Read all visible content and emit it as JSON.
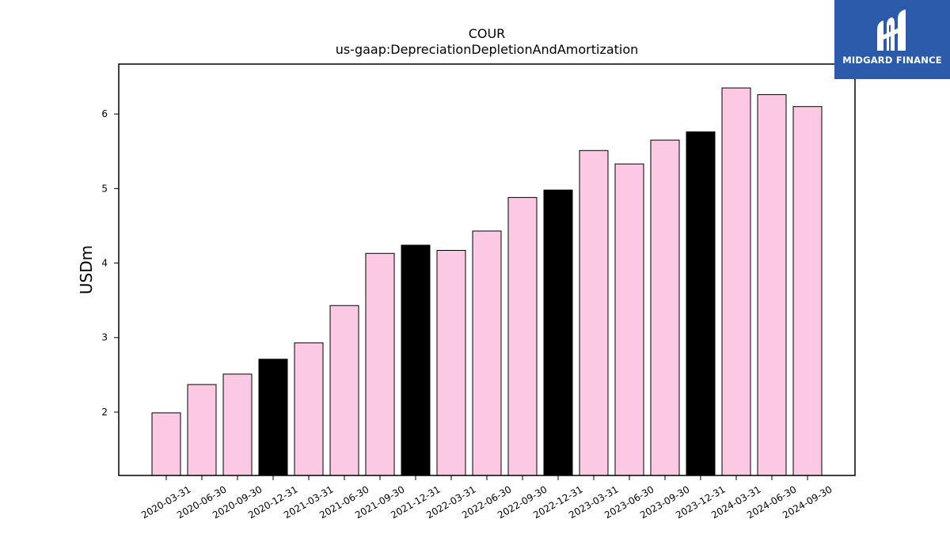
{
  "chart_data": {
    "type": "bar",
    "title": "COUR",
    "subtitle": "us-gaap:DepreciationDepletionAndAmortization",
    "ylabel": "USDm",
    "xlabel": "",
    "ylim": [
      1.15,
      6.67
    ],
    "yticks": [
      2,
      3,
      4,
      5,
      6
    ],
    "grid": false,
    "colors": {
      "default": "#fcc9e4",
      "highlight": "#000000",
      "edge": "#000000"
    },
    "categories": [
      "2020-03-31",
      "2020-06-30",
      "2020-09-30",
      "2020-12-31",
      "2021-03-31",
      "2021-06-30",
      "2021-09-30",
      "2021-12-31",
      "2022-03-31",
      "2022-06-30",
      "2022-09-30",
      "2022-12-31",
      "2023-03-31",
      "2023-06-30",
      "2023-09-30",
      "2023-12-31",
      "2024-03-31",
      "2024-06-30",
      "2024-09-30"
    ],
    "values": [
      1.99,
      2.37,
      2.51,
      2.71,
      2.93,
      3.43,
      4.13,
      4.24,
      4.17,
      4.43,
      4.88,
      4.98,
      5.51,
      5.33,
      5.65,
      5.76,
      6.35,
      6.26,
      6.1
    ],
    "highlighted": [
      false,
      false,
      false,
      true,
      false,
      false,
      false,
      true,
      false,
      false,
      false,
      true,
      false,
      false,
      false,
      true,
      false,
      false,
      false
    ]
  },
  "logo": {
    "text": "MIDGARD FINANCE"
  }
}
